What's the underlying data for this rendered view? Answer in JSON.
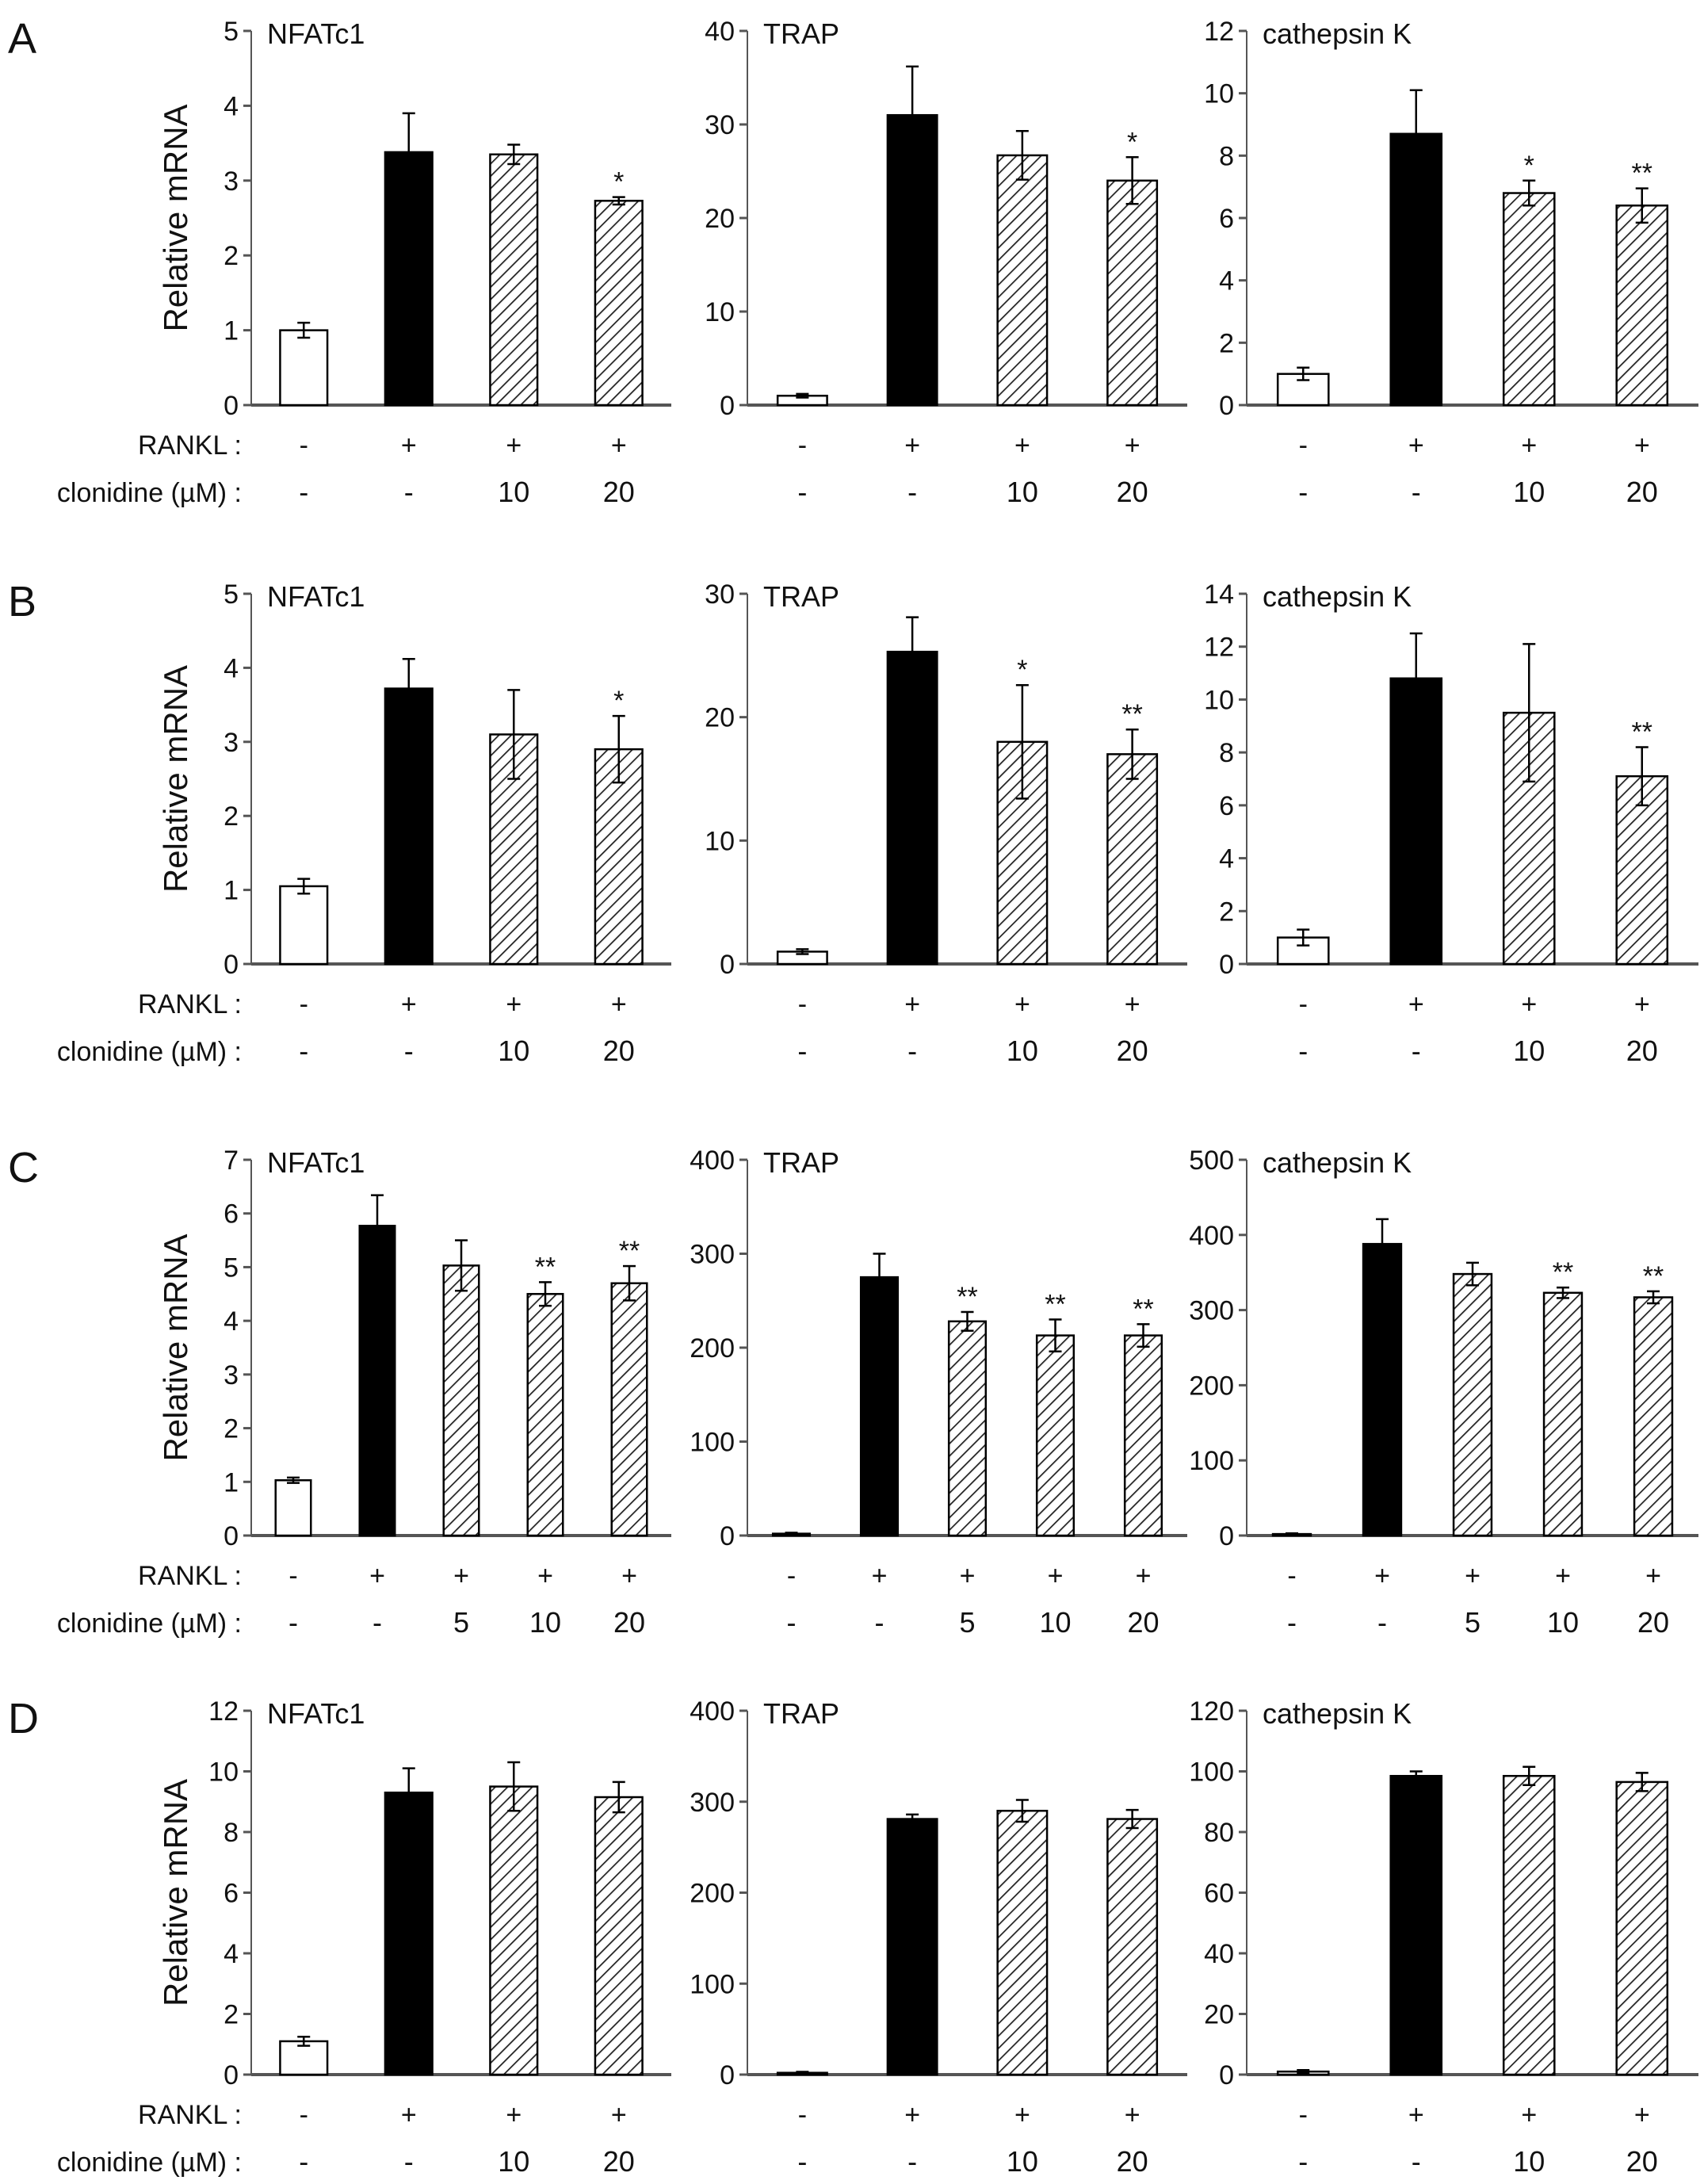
{
  "ylabel": "Relative mRNA",
  "row_labels": {
    "rankl": "RANKL :",
    "clonidine": "clonidine (µM) :"
  },
  "colors": {
    "solid": "#000000",
    "open": "#ffffff",
    "hatch": "#222222",
    "axis": "#555555"
  },
  "chart_data": [
    {
      "panel": "A",
      "type": "bar",
      "title": "NFATc1",
      "ylim": [
        0,
        5
      ],
      "yticks": [
        0,
        1,
        2,
        3,
        4,
        5
      ],
      "rankl": [
        "-",
        "+",
        "+",
        "+"
      ],
      "clonidine": [
        "-",
        "-",
        "10",
        "20"
      ],
      "fill": [
        "open",
        "solid",
        "hatched",
        "hatched"
      ],
      "values": [
        1.0,
        3.38,
        3.35,
        2.73
      ],
      "errors": [
        0.1,
        0.52,
        0.13,
        0.05
      ],
      "sig": [
        "",
        "",
        "",
        "*"
      ]
    },
    {
      "panel": "A",
      "type": "bar",
      "title": "TRAP",
      "ylim": [
        0,
        40
      ],
      "yticks": [
        0,
        10,
        20,
        30,
        40
      ],
      "rankl": [
        "-",
        "+",
        "+",
        "+"
      ],
      "clonidine": [
        "-",
        "-",
        "10",
        "20"
      ],
      "fill": [
        "open",
        "solid",
        "hatched",
        "hatched"
      ],
      "values": [
        1,
        31,
        26.7,
        24
      ],
      "errors": [
        0.2,
        5.2,
        2.6,
        2.5
      ],
      "sig": [
        "",
        "",
        "",
        "*"
      ]
    },
    {
      "panel": "A",
      "type": "bar",
      "title": "cathepsin K",
      "ylim": [
        0,
        12
      ],
      "yticks": [
        0,
        2,
        4,
        6,
        8,
        10,
        12
      ],
      "rankl": [
        "-",
        "+",
        "+",
        "+"
      ],
      "clonidine": [
        "-",
        "-",
        "10",
        "20"
      ],
      "fill": [
        "open",
        "solid",
        "hatched",
        "hatched"
      ],
      "values": [
        1,
        8.7,
        6.8,
        6.4
      ],
      "errors": [
        0.2,
        1.4,
        0.4,
        0.55
      ],
      "sig": [
        "",
        "",
        "*",
        "**"
      ]
    },
    {
      "panel": "B",
      "type": "bar",
      "title": "NFATc1",
      "ylim": [
        0,
        5
      ],
      "yticks": [
        0,
        1,
        2,
        3,
        4,
        5
      ],
      "rankl": [
        "-",
        "+",
        "+",
        "+"
      ],
      "clonidine": [
        "-",
        "-",
        "10",
        "20"
      ],
      "fill": [
        "open",
        "solid",
        "hatched",
        "hatched"
      ],
      "values": [
        1.05,
        3.72,
        3.1,
        2.9
      ],
      "errors": [
        0.1,
        0.4,
        0.6,
        0.45
      ],
      "sig": [
        "",
        "",
        "",
        "*"
      ]
    },
    {
      "panel": "B",
      "type": "bar",
      "title": "TRAP",
      "ylim": [
        0,
        30
      ],
      "yticks": [
        0,
        10,
        20,
        30
      ],
      "rankl": [
        "-",
        "+",
        "+",
        "+"
      ],
      "clonidine": [
        "-",
        "-",
        "10",
        "20"
      ],
      "fill": [
        "open",
        "solid",
        "hatched",
        "hatched"
      ],
      "values": [
        1,
        25.3,
        18,
        17
      ],
      "errors": [
        0.2,
        2.8,
        4.6,
        2
      ],
      "sig": [
        "",
        "",
        "*",
        "**"
      ]
    },
    {
      "panel": "B",
      "type": "bar",
      "title": "cathepsin K",
      "ylim": [
        0,
        14
      ],
      "yticks": [
        0,
        2,
        4,
        6,
        8,
        10,
        12,
        14
      ],
      "rankl": [
        "-",
        "+",
        "+",
        "+"
      ],
      "clonidine": [
        "-",
        "-",
        "10",
        "20"
      ],
      "fill": [
        "open",
        "solid",
        "hatched",
        "hatched"
      ],
      "values": [
        1,
        10.8,
        9.5,
        7.1
      ],
      "errors": [
        0.3,
        1.7,
        2.6,
        1.1
      ],
      "sig": [
        "",
        "",
        "",
        "**"
      ]
    },
    {
      "panel": "C",
      "type": "bar",
      "title": "NFATc1",
      "ylim": [
        0,
        7
      ],
      "yticks": [
        0,
        1,
        2,
        3,
        4,
        5,
        6,
        7
      ],
      "rankl": [
        "-",
        "+",
        "+",
        "+",
        "+"
      ],
      "clonidine": [
        "-",
        "-",
        "5",
        "10",
        "20"
      ],
      "fill": [
        "open",
        "solid",
        "hatched",
        "hatched",
        "hatched"
      ],
      "values": [
        1.03,
        5.77,
        5.03,
        4.5,
        4.7
      ],
      "errors": [
        0.05,
        0.57,
        0.47,
        0.22,
        0.32
      ],
      "sig": [
        "",
        "",
        "",
        "**",
        "**"
      ]
    },
    {
      "panel": "C",
      "type": "bar",
      "title": "TRAP",
      "ylim": [
        0,
        400
      ],
      "yticks": [
        0,
        100,
        200,
        300,
        400
      ],
      "rankl": [
        "-",
        "+",
        "+",
        "+",
        "+"
      ],
      "clonidine": [
        "-",
        "-",
        "5",
        "10",
        "20"
      ],
      "fill": [
        "open",
        "solid",
        "hatched",
        "hatched",
        "hatched"
      ],
      "values": [
        2,
        275,
        228,
        213,
        213
      ],
      "errors": [
        1,
        25,
        10,
        17,
        12
      ],
      "sig": [
        "",
        "",
        "**",
        "**",
        "**"
      ]
    },
    {
      "panel": "C",
      "type": "bar",
      "title": "cathepsin K",
      "ylim": [
        0,
        500
      ],
      "yticks": [
        0,
        100,
        200,
        300,
        400,
        500
      ],
      "rankl": [
        "-",
        "+",
        "+",
        "+",
        "+"
      ],
      "clonidine": [
        "-",
        "-",
        "5",
        "10",
        "20"
      ],
      "fill": [
        "open",
        "solid",
        "hatched",
        "hatched",
        "hatched"
      ],
      "values": [
        2,
        388,
        348,
        323,
        317
      ],
      "errors": [
        1,
        33,
        15,
        7,
        8
      ],
      "sig": [
        "",
        "",
        "",
        "**",
        "**"
      ]
    },
    {
      "panel": "D",
      "type": "bar",
      "title": "NFATc1",
      "ylim": [
        0,
        12
      ],
      "yticks": [
        0,
        2,
        4,
        6,
        8,
        10,
        12
      ],
      "rankl": [
        "-",
        "+",
        "+",
        "+"
      ],
      "clonidine": [
        "-",
        "-",
        "10",
        "20"
      ],
      "fill": [
        "open",
        "solid",
        "hatched",
        "hatched"
      ],
      "values": [
        1.1,
        9.3,
        9.5,
        9.15
      ],
      "errors": [
        0.15,
        0.8,
        0.8,
        0.5
      ],
      "sig": [
        "",
        "",
        "",
        ""
      ]
    },
    {
      "panel": "D",
      "type": "bar",
      "title": "TRAP",
      "ylim": [
        0,
        400
      ],
      "yticks": [
        0,
        100,
        200,
        300,
        400
      ],
      "rankl": [
        "-",
        "+",
        "+",
        "+"
      ],
      "clonidine": [
        "-",
        "-",
        "10",
        "20"
      ],
      "fill": [
        "open",
        "solid",
        "hatched",
        "hatched"
      ],
      "values": [
        2,
        281,
        290,
        281
      ],
      "errors": [
        1,
        5,
        12,
        10
      ],
      "sig": [
        "",
        "",
        "",
        ""
      ]
    },
    {
      "panel": "D",
      "type": "bar",
      "title": "cathepsin K",
      "ylim": [
        0,
        120
      ],
      "yticks": [
        0,
        20,
        40,
        60,
        80,
        100,
        120
      ],
      "rankl": [
        "-",
        "+",
        "+",
        "+"
      ],
      "clonidine": [
        "-",
        "-",
        "10",
        "20"
      ],
      "fill": [
        "open",
        "solid",
        "hatched",
        "hatched"
      ],
      "values": [
        1,
        98.5,
        98.5,
        96.5
      ],
      "errors": [
        0.5,
        1.5,
        3,
        3
      ],
      "sig": [
        "",
        "",
        "",
        ""
      ]
    }
  ]
}
